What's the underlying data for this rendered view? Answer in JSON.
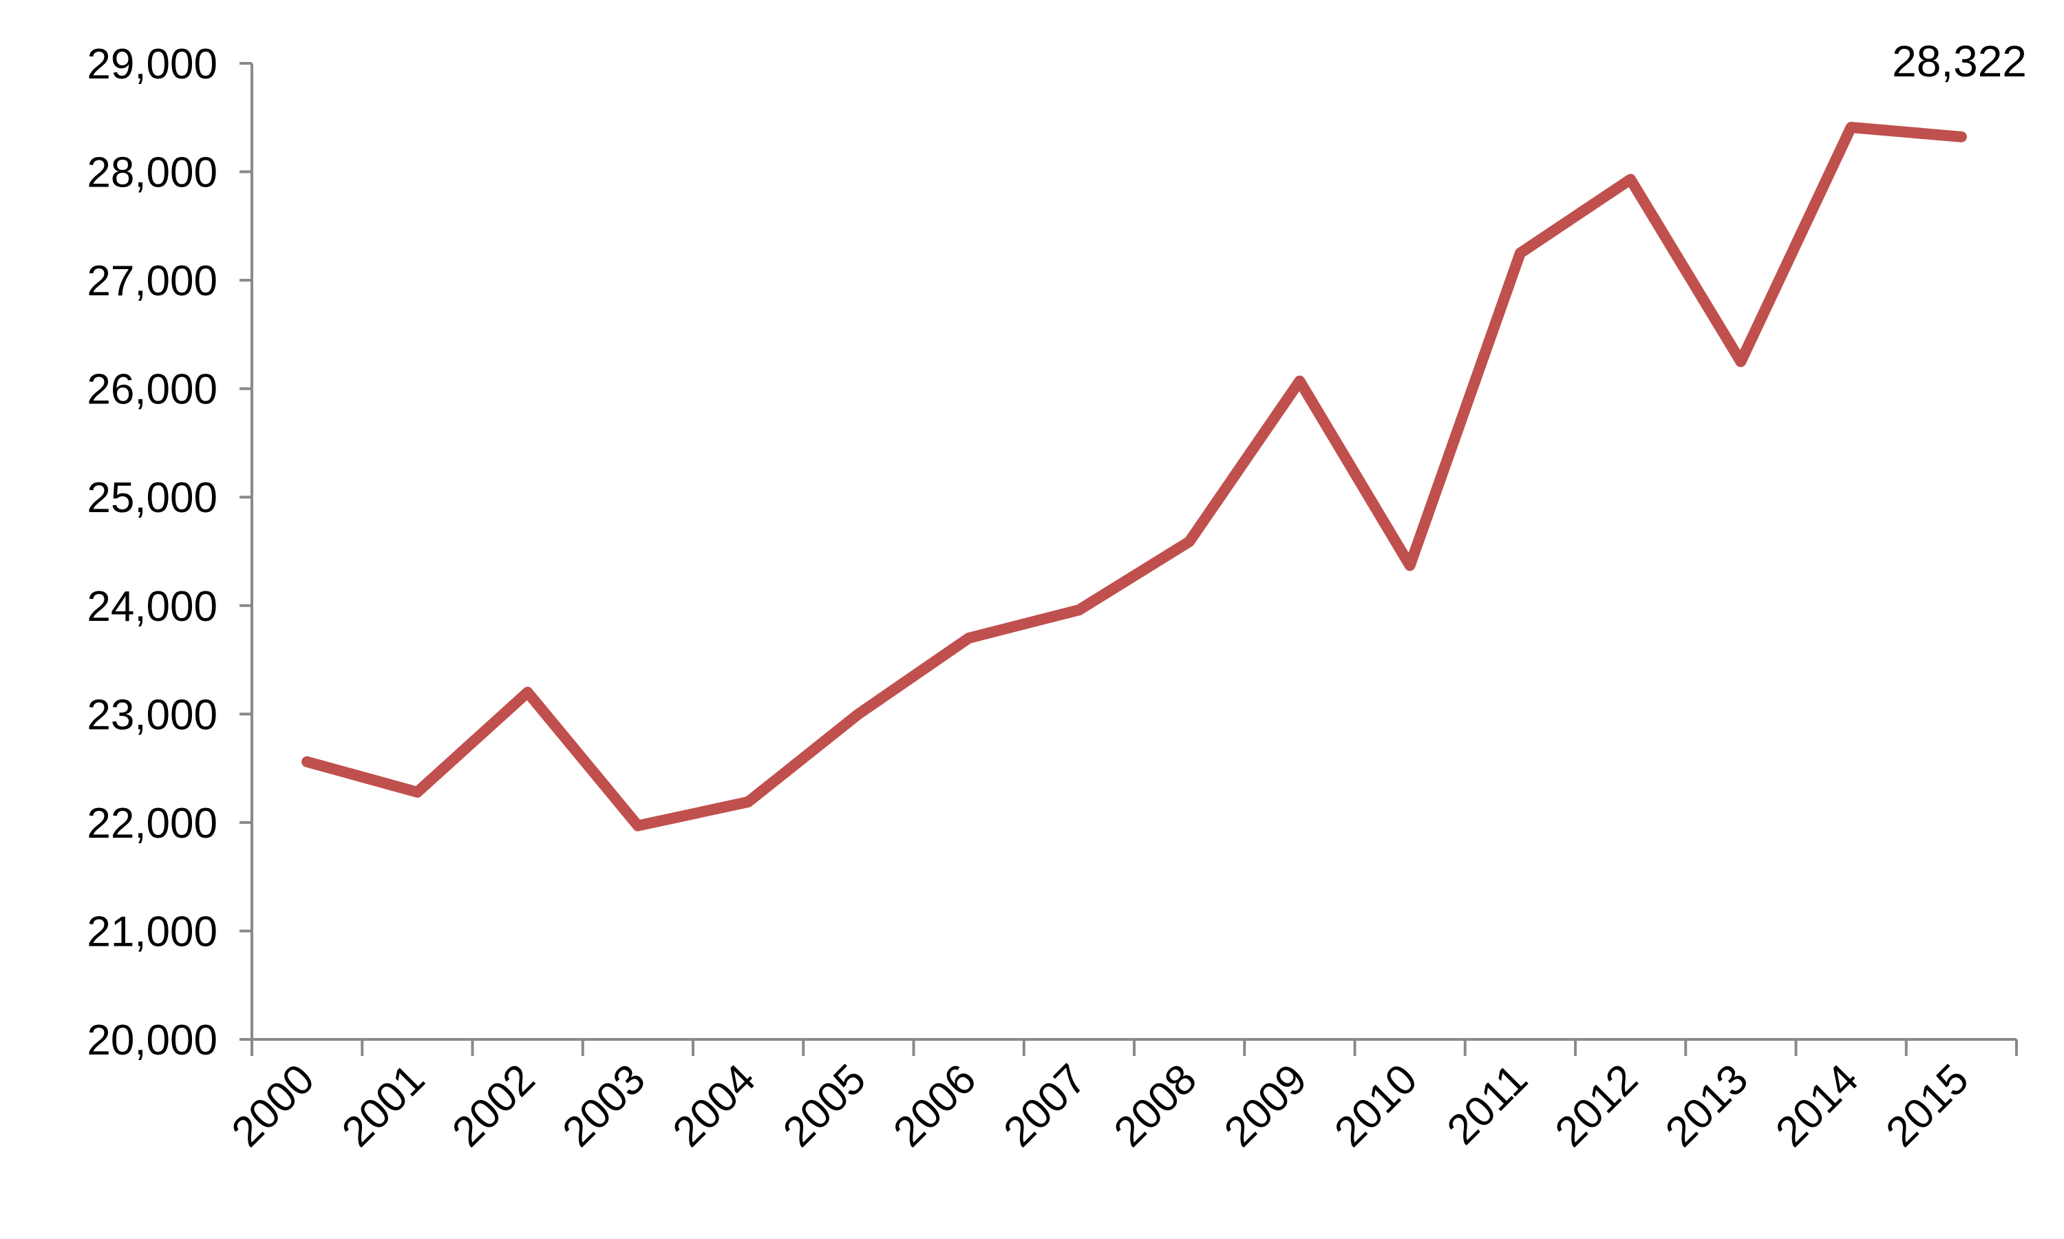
{
  "chart_data": {
    "type": "line",
    "title": "",
    "xlabel": "",
    "ylabel": "",
    "x": [
      "2000",
      "2001",
      "2002",
      "2003",
      "2004",
      "2005",
      "2006",
      "2007",
      "2008",
      "2009",
      "2010",
      "2011",
      "2012",
      "2013",
      "2014",
      "2015"
    ],
    "series": [
      {
        "values": [
          22560,
          22280,
          23200,
          21970,
          22190,
          23000,
          23700,
          23960,
          24590,
          26070,
          24370,
          27250,
          27930,
          26250,
          28410,
          28322
        ],
        "color": "#c0504d"
      }
    ],
    "ylim": [
      20000,
      29000
    ],
    "yticks": [
      20000,
      21000,
      22000,
      23000,
      24000,
      25000,
      26000,
      27000,
      28000,
      29000
    ],
    "ytick_labels": [
      "20,000",
      "21,000",
      "22,000",
      "23,000",
      "24,000",
      "25,000",
      "26,000",
      "27,000",
      "28,000",
      "29,000"
    ],
    "data_labels": [
      {
        "index": 15,
        "text": "28,322"
      }
    ],
    "grid": false,
    "legend": "none",
    "axis_color": "#898989"
  }
}
